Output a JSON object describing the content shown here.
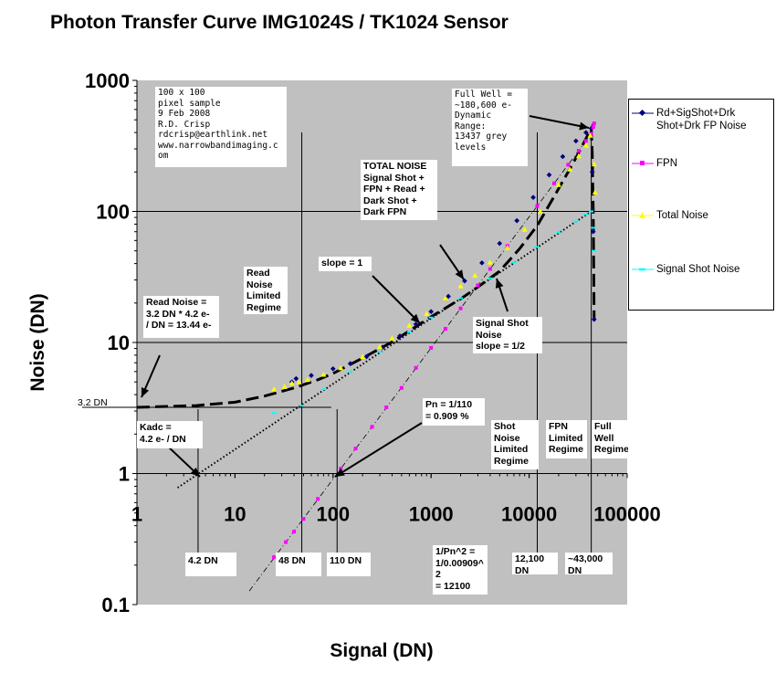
{
  "chart_data": {
    "type": "scatter",
    "title": "Photon Transfer Curve IMG1024S / TK1024 Sensor",
    "xlabel": "Signal (DN)",
    "ylabel": "Noise (DN)",
    "xscale": "log",
    "yscale": "log",
    "xlim": [
      1,
      100000
    ],
    "ylim": [
      0.1,
      1000
    ],
    "x_ticks": [
      "1",
      "10",
      "100",
      "1000",
      "10000",
      "100000"
    ],
    "y_ticks": [
      "0.1",
      "1",
      "10",
      "100",
      "1000"
    ],
    "grid": "horizontal",
    "legend_position": "right",
    "colors": {
      "plot_bg": "#c0c0c0",
      "rd": "#000080",
      "fpn": "#ff00ff",
      "total": "#ffff00",
      "shot": "#00ffff"
    },
    "series": [
      {
        "name": "Rd+SigShot+Drk Shot+Drk FP Noise",
        "marker": "diamond",
        "color": "#000080",
        "points": [
          [
            38,
            5.0
          ],
          [
            42,
            5.3
          ],
          [
            60,
            5.6
          ],
          [
            100,
            6.3
          ],
          [
            150,
            6.9
          ],
          [
            220,
            7.8
          ],
          [
            320,
            9.2
          ],
          [
            480,
            11.2
          ],
          [
            700,
            13.8
          ],
          [
            1000,
            17.2
          ],
          [
            1500,
            22.5
          ],
          [
            2200,
            29.5
          ],
          [
            3300,
            40.5
          ],
          [
            5000,
            57
          ],
          [
            7500,
            85
          ],
          [
            11000,
            128
          ],
          [
            16000,
            190
          ],
          [
            22000,
            262
          ],
          [
            30000,
            345
          ],
          [
            38000,
            400
          ],
          [
            43000,
            430
          ],
          [
            44000,
            200
          ],
          [
            45000,
            70
          ],
          [
            46000,
            15
          ]
        ]
      },
      {
        "name": "FPN",
        "marker": "square",
        "color": "#ff00ff",
        "points": [
          [
            25,
            0.23
          ],
          [
            33,
            0.3
          ],
          [
            40,
            0.36
          ],
          [
            50,
            0.45
          ],
          [
            70,
            0.64
          ],
          [
            120,
            1.09
          ],
          [
            170,
            1.55
          ],
          [
            250,
            2.27
          ],
          [
            350,
            3.2
          ],
          [
            500,
            4.5
          ],
          [
            700,
            6.4
          ],
          [
            1000,
            9.1
          ],
          [
            1400,
            12.7
          ],
          [
            2000,
            18.2
          ],
          [
            3000,
            27.3
          ],
          [
            4000,
            36.4
          ],
          [
            6000,
            54.5
          ],
          [
            12100,
            110
          ],
          [
            18000,
            164
          ],
          [
            25000,
            227
          ],
          [
            32000,
            290
          ],
          [
            38000,
            345
          ],
          [
            43000,
            391
          ],
          [
            45000,
            440
          ],
          [
            46000,
            470
          ]
        ]
      },
      {
        "name": "Total Noise",
        "marker": "triangle",
        "color": "#ffff00",
        "points": [
          [
            25,
            4.4
          ],
          [
            32,
            4.6
          ],
          [
            38,
            4.9
          ],
          [
            45,
            5.0
          ],
          [
            55,
            5.2
          ],
          [
            80,
            5.7
          ],
          [
            120,
            6.4
          ],
          [
            200,
            7.8
          ],
          [
            300,
            9.3
          ],
          [
            400,
            10.8
          ],
          [
            600,
            13.5
          ],
          [
            900,
            16.6
          ],
          [
            1400,
            21.8
          ],
          [
            2000,
            27.0
          ],
          [
            2800,
            32.5
          ],
          [
            4000,
            41
          ],
          [
            6000,
            53
          ],
          [
            9000,
            73
          ],
          [
            13000,
            100
          ],
          [
            20000,
            160
          ],
          [
            26000,
            210
          ],
          [
            32000,
            265
          ],
          [
            38000,
            320
          ],
          [
            42000,
            380
          ],
          [
            46000,
            230
          ],
          [
            47000,
            140
          ]
        ]
      },
      {
        "name": "Signal Shot Noise",
        "marker": "dash",
        "color": "#00ffff",
        "points": [
          [
            25,
            2.9
          ],
          [
            48,
            3.3
          ],
          [
            80,
            4.4
          ],
          [
            150,
            6.0
          ],
          [
            300,
            8.5
          ],
          [
            600,
            12.0
          ],
          [
            1000,
            15.5
          ],
          [
            2000,
            21.8
          ],
          [
            4000,
            30.9
          ],
          [
            7000,
            40.8
          ],
          [
            12000,
            53.5
          ],
          [
            20000,
            69
          ],
          [
            30000,
            84
          ],
          [
            38000,
            95
          ],
          [
            43000,
            100
          ],
          [
            45000,
            75
          ],
          [
            46000,
            50
          ]
        ]
      }
    ],
    "fit_lines": [
      {
        "name": "shot noise slope 1/2",
        "style": "dotted",
        "points": [
          [
            2.6,
            0.78
          ],
          [
            43000,
            100
          ]
        ]
      },
      {
        "name": "FPN slope 1",
        "style": "dash-dot",
        "points": [
          [
            14,
            0.127
          ],
          [
            44000,
            400
          ]
        ]
      },
      {
        "name": "total noise fit",
        "style": "long-dash",
        "points": [
          [
            1,
            3.2
          ],
          [
            4,
            3.3
          ],
          [
            10,
            3.5
          ],
          [
            20,
            3.9
          ],
          [
            40,
            4.5
          ],
          [
            70,
            5.2
          ],
          [
            100,
            5.8
          ],
          [
            200,
            7.6
          ],
          [
            400,
            10.1
          ],
          [
            700,
            13.2
          ],
          [
            1000,
            15.7
          ],
          [
            2000,
            21.5
          ],
          [
            3000,
            26.5
          ],
          [
            5000,
            35
          ],
          [
            8000,
            52
          ],
          [
            12100,
            78
          ],
          [
            18000,
            130
          ],
          [
            25000,
            200
          ],
          [
            32000,
            280
          ],
          [
            38000,
            360
          ],
          [
            43000,
            430
          ],
          [
            44000,
            280
          ],
          [
            45000,
            100
          ],
          [
            46000,
            15
          ]
        ]
      }
    ],
    "reference_lines": {
      "vertical": [
        48,
        12100,
        43000
      ],
      "vertical_long": [
        4.2,
        110
      ],
      "horizontal_readnoise": 3.2
    },
    "annotations": [
      {
        "id": "sample",
        "text": "100 x 100\npixel sample\n9 Feb 2008\nR.D. Crisp\nrdcrisp@earthlink.net\nwww.narrowbandimaging.c\nom"
      },
      {
        "id": "fullwell",
        "text": "Full Well =\n~180,600 e-\nDynamic\nRange:\n13437 grey\nlevels"
      },
      {
        "id": "totalnoise",
        "text": "TOTAL NOISE\nSignal Shot +\nFPN + Read +\nDark Shot +\nDark FPN"
      },
      {
        "id": "readlimited",
        "text": "Read\nNoise\nLimited\nRegime"
      },
      {
        "id": "slope1",
        "text": "slope = 1"
      },
      {
        "id": "readnoise",
        "text": "Read Noise =\n3.2 DN * 4.2 e-\n/ DN = 13.44 e-"
      },
      {
        "id": "signalshot",
        "text": "Signal Shot\nNoise\nslope = 1/2"
      },
      {
        "id": "3p2dn",
        "text": "3.2 DN"
      },
      {
        "id": "kadc",
        "text": "Kadc =\n4.2 e- / DN"
      },
      {
        "id": "pn",
        "text": "Pn = 1/110\n = 0.909 %"
      },
      {
        "id": "shotlimited",
        "text": "Shot\nNoise\nLimited\nRegime"
      },
      {
        "id": "fpnlimited",
        "text": "FPN\nLimited\nRegime"
      },
      {
        "id": "fullwellreg",
        "text": "Full\nWell\nRegime"
      },
      {
        "id": "4p2dn",
        "text": "4.2 DN"
      },
      {
        "id": "48dn",
        "text": "48 DN"
      },
      {
        "id": "110dn",
        "text": "110 DN"
      },
      {
        "id": "pnsq",
        "text": "1/Pn^2 =\n1/0.00909^\n2\n= 12100"
      },
      {
        "id": "12100dn",
        "text": "12,100\nDN"
      },
      {
        "id": "43000dn",
        "text": "~43,000\nDN"
      }
    ]
  }
}
